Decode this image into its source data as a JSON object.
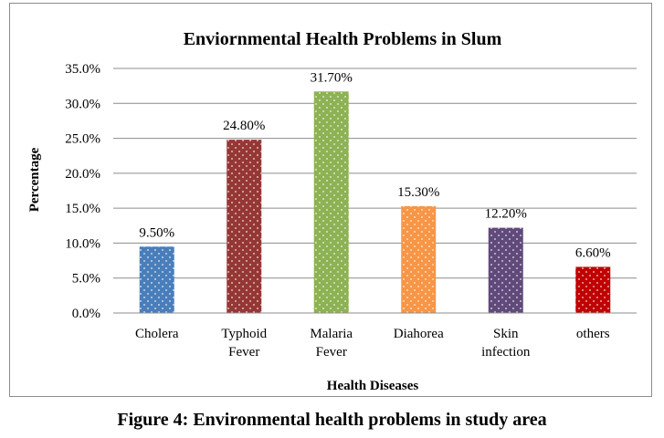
{
  "caption": "Figure 4: Environmental health problems in study area",
  "chart_data": {
    "type": "bar",
    "title": "Enviornmental Health Problems in Slum",
    "xlabel": "Health Diseases",
    "ylabel": "Percentage",
    "ylim": [
      0,
      35
    ],
    "y_ticks": [
      "0.0%",
      "5.0%",
      "10.0%",
      "15.0%",
      "20.0%",
      "25.0%",
      "30.0%",
      "35.0%"
    ],
    "grid": true,
    "legend": "none",
    "categories": [
      [
        "Cholera"
      ],
      [
        "Typhoid",
        "Fever"
      ],
      [
        "Malaria",
        "Fever"
      ],
      [
        "Diahorea"
      ],
      [
        "Skin",
        "infection"
      ],
      [
        "others"
      ]
    ],
    "values": [
      9.5,
      24.8,
      31.7,
      15.3,
      12.2,
      6.6
    ],
    "data_labels": [
      "9.50%",
      "24.80%",
      "31.70%",
      "15.30%",
      "12.20%",
      "6.60%"
    ],
    "colors": [
      "#4a7ebb",
      "#953735",
      "#8db254",
      "#f79646",
      "#604a7b",
      "#c00000"
    ]
  }
}
